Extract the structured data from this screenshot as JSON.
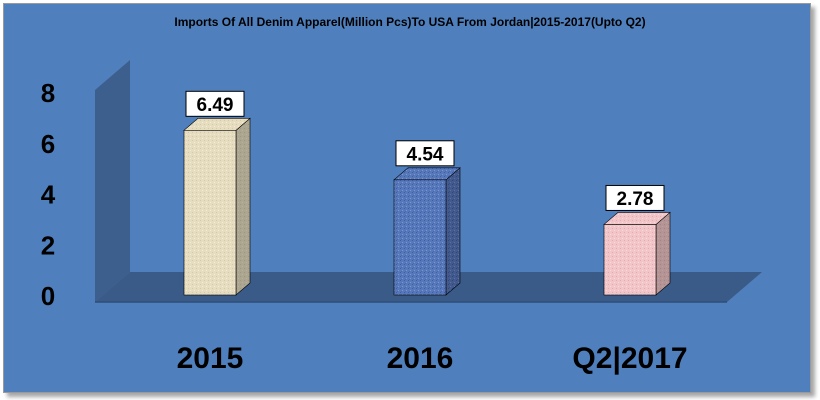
{
  "chart_data": {
    "type": "bar",
    "title": "Imports Of All Denim Apparel(Million Pcs)To USA From Jordan|2015-2017(Upto Q2)",
    "categories": [
      "2015",
      "2016",
      "Q2|2017"
    ],
    "values": [
      6.49,
      4.54,
      2.78
    ],
    "data_labels": [
      "6.49",
      "4.54",
      "2.78"
    ],
    "ylim": [
      0,
      8
    ],
    "yticks": [
      "0",
      "2",
      "4",
      "6",
      "8"
    ],
    "xlabel": "",
    "ylabel": "",
    "grid": false,
    "legend": "none",
    "bar_colors": [
      "#e8dcc0",
      "#5577bb",
      "#f2c4c6"
    ],
    "colors": {
      "background": "#4f80bd",
      "walls": "#3d5f8e",
      "floor": "#3a5a88"
    }
  }
}
